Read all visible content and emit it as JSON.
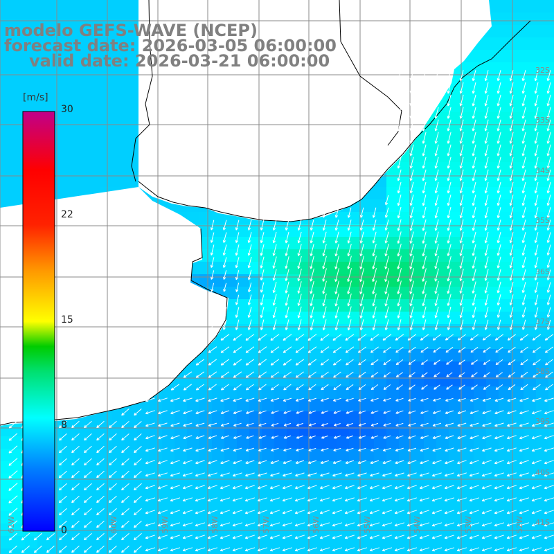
{
  "title": {
    "line1": "modelo GEFS-WAVE (NCEP)",
    "line2": "forecast date: 2026-03-05 06:00:00",
    "line3": "valid date: 2026-03-21 06:00:00"
  },
  "colorbar": {
    "unit": "[m/s]",
    "ticks": [
      "30",
      "22",
      "15",
      "8",
      "0"
    ],
    "range": [
      0,
      30
    ],
    "colors": [
      "#0000ff",
      "#00a0ff",
      "#00ffff",
      "#00e060",
      "#00cc00",
      "#80e000",
      "#ffff00",
      "#ff9900",
      "#ff3300",
      "#ff0000",
      "#e0007a",
      "#c0008a"
    ]
  },
  "lat_labels": [
    "32S",
    "33S",
    "34S",
    "35S",
    "36S",
    "37S",
    "38S",
    "39S",
    "40S",
    "41S"
  ],
  "lon_labels": [
    "61W",
    "60W",
    "59W",
    "58W",
    "57W",
    "56W",
    "55W",
    "54W",
    "53W",
    "52W",
    "51W"
  ],
  "colors": {
    "land": "#ffffff",
    "grid": "#8a8a8a",
    "coast": "#000000",
    "arrows": "#ffffff",
    "title": "#808080"
  }
}
